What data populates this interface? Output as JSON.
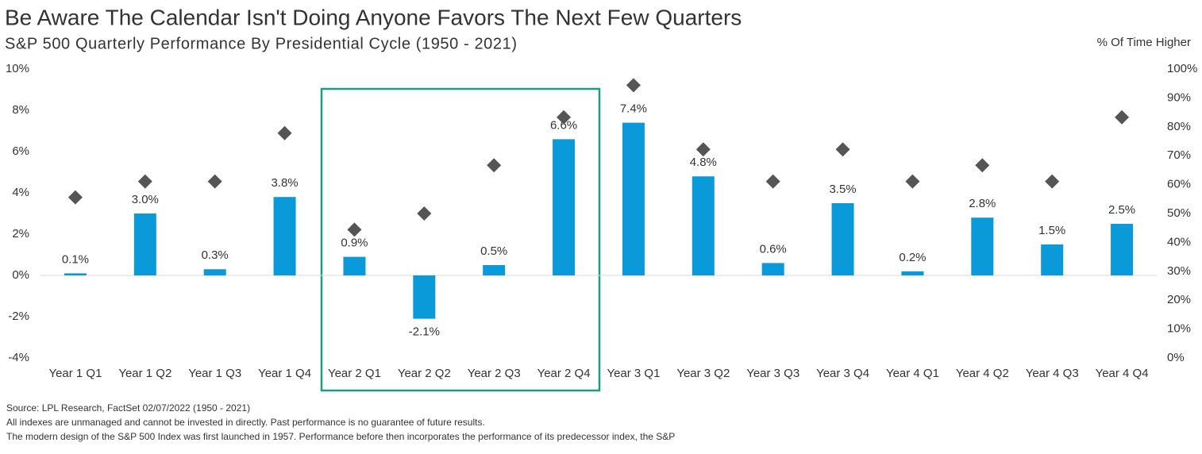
{
  "chart_data": {
    "type": "bar",
    "title": "Be Aware The Calendar Isn't Doing Anyone Favors The Next Few Quarters",
    "subtitle": "S&P 500 Quarterly Performance By Presidential Cycle (1950 - 2021)",
    "y2_label": "% Of Time Higher",
    "categories": [
      "Year 1 Q1",
      "Year 1 Q2",
      "Year 1 Q3",
      "Year 1 Q4",
      "Year 2 Q1",
      "Year 2 Q2",
      "Year 2 Q3",
      "Year 2 Q4",
      "Year 3 Q1",
      "Year 3 Q2",
      "Year 3 Q3",
      "Year 3 Q4",
      "Year 4 Q1",
      "Year 4 Q2",
      "Year 4 Q3",
      "Year 4 Q4"
    ],
    "series": [
      {
        "type": "bar",
        "color": "#0a9ad9",
        "values": [
          0.1,
          3.0,
          0.3,
          3.8,
          0.9,
          -2.1,
          0.5,
          6.6,
          7.4,
          4.8,
          0.6,
          3.5,
          0.2,
          2.8,
          1.5,
          2.5
        ],
        "value_labels": [
          "0.1%",
          "3.0%",
          "0.3%",
          "3.8%",
          "0.9%",
          "-2.1%",
          "0.5%",
          "6.6%",
          "7.4%",
          "4.8%",
          "0.6%",
          "3.5%",
          "0.2%",
          "2.8%",
          "1.5%",
          "2.5%"
        ]
      },
      {
        "type": "scatter",
        "axis": "y2",
        "color": "#555555",
        "values": [
          55.6,
          61.1,
          61.1,
          77.8,
          44.4,
          50.0,
          66.7,
          83.3,
          94.4,
          72.2,
          61.1,
          72.2,
          61.1,
          66.7,
          61.1,
          83.3
        ]
      }
    ],
    "ylim": [
      -4,
      10
    ],
    "yticks": [
      {
        "value": -4,
        "label": "-4%"
      },
      {
        "value": -2,
        "label": "-2%"
      },
      {
        "value": 0,
        "label": "0%"
      },
      {
        "value": 2,
        "label": "2%"
      },
      {
        "value": 4,
        "label": "4%"
      },
      {
        "value": 6,
        "label": "6%"
      },
      {
        "value": 8,
        "label": "8%"
      },
      {
        "value": 10,
        "label": "10%"
      }
    ],
    "y2lim": [
      0,
      100
    ],
    "y2ticks": [
      {
        "value": 0,
        "label": "0%"
      },
      {
        "value": 10,
        "label": "10%"
      },
      {
        "value": 20,
        "label": "20%"
      },
      {
        "value": 30,
        "label": "30%"
      },
      {
        "value": 40,
        "label": "40%"
      },
      {
        "value": 50,
        "label": "50%"
      },
      {
        "value": 60,
        "label": "60%"
      },
      {
        "value": 70,
        "label": "70%"
      },
      {
        "value": 80,
        "label": "80%"
      },
      {
        "value": 90,
        "label": "90%"
      },
      {
        "value": 100,
        "label": "100%"
      }
    ],
    "notes": [
      "Source: LPL Research, FactSet 02/07/2022 (1950 - 2021)",
      "All indexes are unmanaged and cannot be invested in directly. Past performance is no guarantee of future results.",
      "The modern design of the S&P 500 Index was first launched in 1957. Performance before then incorporates the performance of its  predecessor index, the S&P"
    ]
  }
}
